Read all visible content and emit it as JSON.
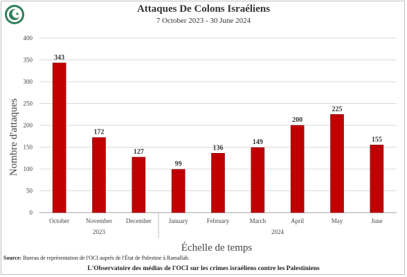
{
  "chart_data": {
    "type": "bar",
    "title": "Attaques De Colons Israéliens",
    "subtitle": "7 October 2023 - 30 June 2024",
    "xlabel": "Échelle de temps",
    "ylabel": "Nombre d'attaques",
    "ylim": [
      0,
      400
    ],
    "yticks": [
      0,
      50,
      100,
      150,
      200,
      250,
      300,
      350,
      400
    ],
    "categories": [
      "October",
      "November",
      "December",
      "January",
      "February",
      "March",
      "April",
      "May",
      "June"
    ],
    "values": [
      343,
      172,
      127,
      99,
      136,
      149,
      200,
      225,
      155
    ],
    "groups": [
      {
        "label": "2023",
        "categories": [
          "October",
          "November",
          "December"
        ]
      },
      {
        "label": "2024",
        "categories": [
          "January",
          "February",
          "March",
          "April",
          "May",
          "June"
        ]
      }
    ],
    "bar_color": "#c00000",
    "grid": true,
    "legend": "none"
  },
  "source": {
    "label": "Source:",
    "text": "Bureau de représentation de l'OCI auprès de l'État de Palestine à Ramallah."
  },
  "footer": "L'Observatoire des médias de l'OCI sur les crimes israéliens contre les Palestiniens",
  "logo": {
    "icon": "oic-crescent-logo",
    "color": "#2e7d5b"
  }
}
